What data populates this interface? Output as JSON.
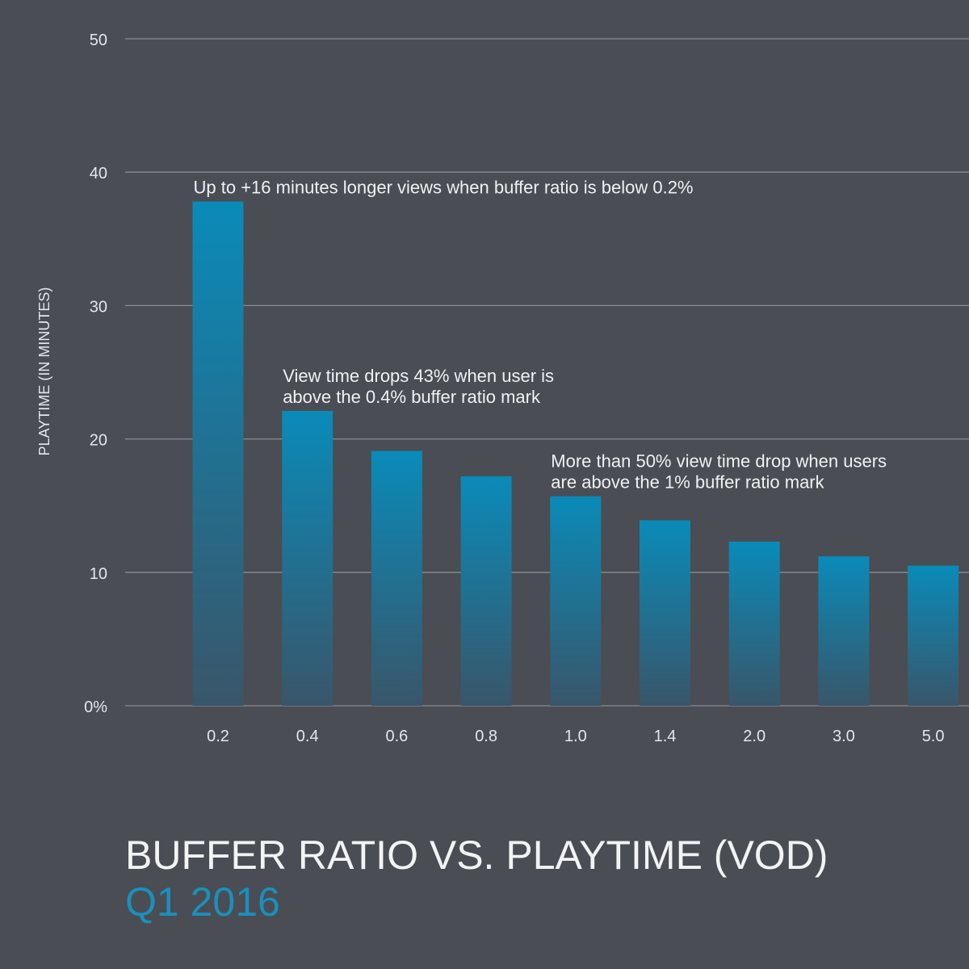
{
  "chart_data": {
    "type": "bar",
    "title": "BUFFER RATIO VS. PLAYTIME (VOD)",
    "subtitle": "Q1 2016",
    "xlabel": "",
    "ylabel": "PLAYTIME (IN MINUTES)",
    "categories": [
      "0.2",
      "0.4",
      "0.6",
      "0.8",
      "1.0",
      "1.4",
      "2.0",
      "3.0",
      "5.0"
    ],
    "values": [
      37.8,
      22.1,
      19.1,
      17.2,
      15.7,
      13.9,
      12.3,
      11.2,
      10.5
    ],
    "y_ticks": [
      "0%",
      "10",
      "20",
      "30",
      "40",
      "50"
    ],
    "y_tick_values": [
      0,
      10,
      20,
      30,
      40,
      50
    ],
    "ylim": [
      0,
      50
    ],
    "grid": true,
    "legend": "none",
    "colors": {
      "background": "#4a4d53",
      "bar_top": "#0a8bb9",
      "bar_bottom": "#39566a",
      "grid": "#8a8d92",
      "title": "#f2f3f5",
      "subtitle": "#1a90bd"
    },
    "annotations": [
      {
        "category": "0.2",
        "lines": [
          "Up to +16 minutes longer views when buffer ratio is below 0.2%"
        ]
      },
      {
        "category": "0.4",
        "lines": [
          "View time drops 43% when user is",
          "above the 0.4% buffer ratio mark"
        ]
      },
      {
        "category": "1.0",
        "lines": [
          "More than 50% view time drop when users",
          "are above the 1% buffer ratio mark"
        ]
      }
    ]
  }
}
